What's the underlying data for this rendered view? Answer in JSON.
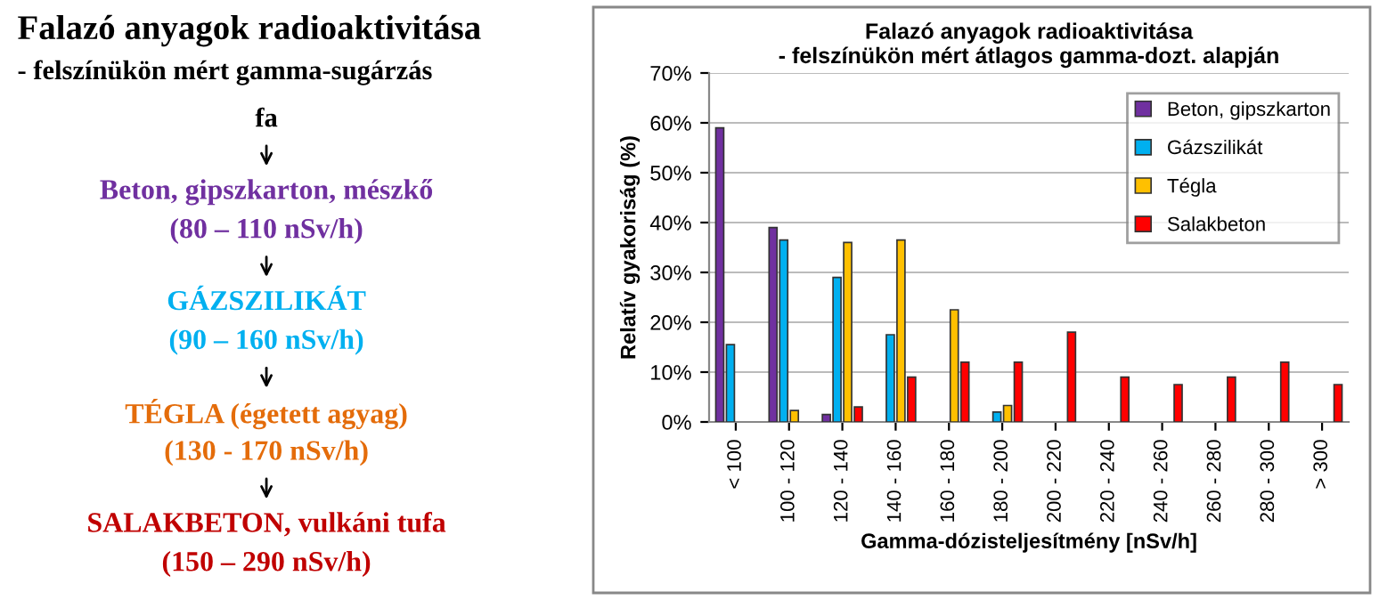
{
  "chart_data": [
    {
      "type": "other",
      "title": "Falazó anyagok radioaktivitása",
      "subtitle": "- felszínükön mért gamma-sugárzás",
      "annotations": [
        "fa",
        "Beton, gipszkarton, mészkő",
        "(80 – 110 nSv/h)",
        "GÁZSZILIKÁT",
        "(90 – 160 nSv/h)",
        "TÉGLA (égetett agyag)",
        "(130 - 170 nSv/h)",
        "SALAKBETON, vulkáni tufa",
        "(150 – 290 nSv/h)"
      ],
      "colors": [
        "#000000",
        "#7030a0",
        "#7030a0",
        "#00b0f0",
        "#00b0f0",
        "#e46c0a",
        "#e46c0a",
        "#c00000",
        "#c00000"
      ]
    },
    {
      "type": "bar",
      "title": "Falazó anyagok radioaktivitása\n- felszínükön mért átlagos gamma-dozt. alapján",
      "xlabel": "Gamma-dózisteljesítmény [nSv/h]",
      "ylabel": "Relatív gyakoriság (%)",
      "categories": [
        "< 100",
        "100 - 120",
        "120 - 140",
        "140 - 160",
        "160 - 180",
        "180 - 200",
        "200 - 220",
        "220 - 240",
        "240 - 260",
        "260 - 280",
        "280 - 300",
        "> 300"
      ],
      "series": [
        {
          "name": "Beton, gipszkarton",
          "color": "#7030a0",
          "values": [
            59,
            39,
            1.5,
            null,
            null,
            null,
            null,
            null,
            null,
            null,
            null,
            null
          ]
        },
        {
          "name": "Gázszilikát",
          "color": "#00b0f0",
          "values": [
            15.5,
            36.5,
            29,
            17.5,
            null,
            2,
            null,
            null,
            null,
            null,
            null,
            null
          ]
        },
        {
          "name": "Tégla",
          "color": "#ffc000",
          "values": [
            null,
            2.3,
            36,
            36.5,
            22.5,
            3.3,
            null,
            null,
            null,
            null,
            null,
            null
          ]
        },
        {
          "name": "Salakbeton",
          "color": "#ff0000",
          "values": [
            null,
            null,
            3,
            9,
            12,
            12,
            18,
            9,
            7.5,
            9,
            12,
            7.5
          ]
        }
      ],
      "ylim": [
        0,
        70
      ],
      "yticks": [
        {
          "value": 0,
          "label": "0%"
        },
        {
          "value": 10,
          "label": "10%"
        },
        {
          "value": 20,
          "label": "20%"
        },
        {
          "value": 30,
          "label": "30%"
        },
        {
          "value": 40,
          "label": "40%"
        },
        {
          "value": 50,
          "label": "50%"
        },
        {
          "value": 60,
          "label": "60%"
        },
        {
          "value": 70,
          "label": "70%"
        }
      ],
      "grid": "y",
      "legend": "top right"
    }
  ]
}
